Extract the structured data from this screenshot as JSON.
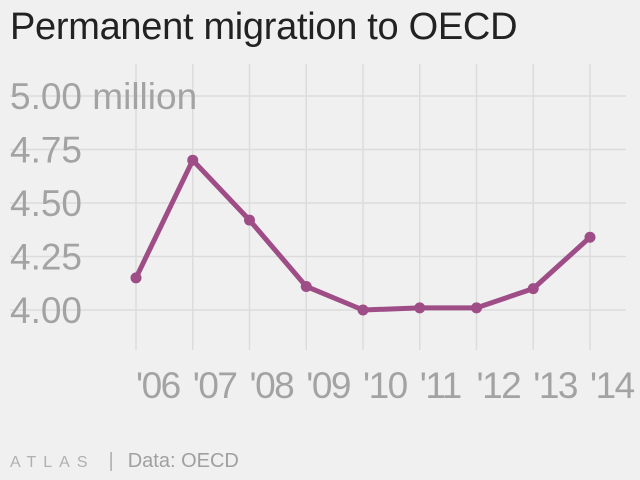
{
  "title": "Permanent migration to OECD",
  "footer": {
    "logo": "ATLAS",
    "separator": "|",
    "source": "Data: OECD"
  },
  "colors": {
    "line": "#9e4d86",
    "grid": "#dcdcdc",
    "tick_label": "#a3a3a3",
    "title": "#222222",
    "background": "#f0f0f0"
  },
  "chart_data": {
    "type": "line",
    "title": "Permanent migration to OECD",
    "categories": [
      "'06",
      "'07",
      "'08",
      "'09",
      "'10",
      "'11",
      "'12",
      "'13",
      "'14"
    ],
    "series": [
      {
        "values": [
          4.15,
          4.7,
          4.42,
          4.11,
          4.0,
          4.01,
          4.01,
          4.1,
          4.34
        ]
      }
    ],
    "y_ticks": [
      4.0,
      4.25,
      4.5,
      4.75,
      5.0
    ],
    "y_tick_labels": [
      "4.00",
      "4.25",
      "4.50",
      "4.75",
      "5.00 million"
    ],
    "ylim": [
      4.0,
      5.0
    ],
    "grid": true,
    "legend": "none"
  }
}
